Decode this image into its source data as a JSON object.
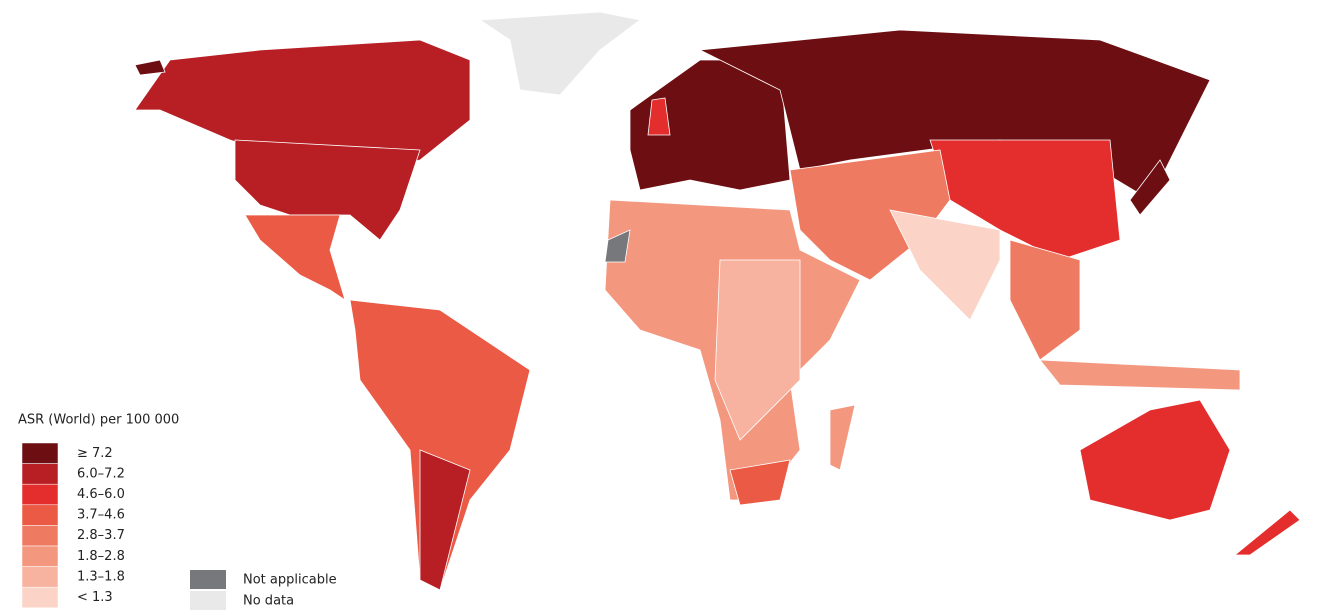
{
  "legend": {
    "title": "ASR (World) per 100 000",
    "classes": [
      {
        "label": "≥ 7.2",
        "color": "#6d0e12"
      },
      {
        "label": "6.0–7.2",
        "color": "#b71f24"
      },
      {
        "label": "4.6–6.0",
        "color": "#e42d2d"
      },
      {
        "label": "3.7–4.6",
        "color": "#ea5a44"
      },
      {
        "label": "2.8–3.7",
        "color": "#ef7a62"
      },
      {
        "label": "1.8–2.8",
        "color": "#f3977f"
      },
      {
        "label": "1.3–1.8",
        "color": "#f7b3a0"
      },
      {
        "label": "< 1.3",
        "color": "#fbd3c7"
      }
    ],
    "other": [
      {
        "label": "Not applicable",
        "color": "#76787b"
      },
      {
        "label": "No data",
        "color": "#e9e9e9"
      }
    ]
  }
}
